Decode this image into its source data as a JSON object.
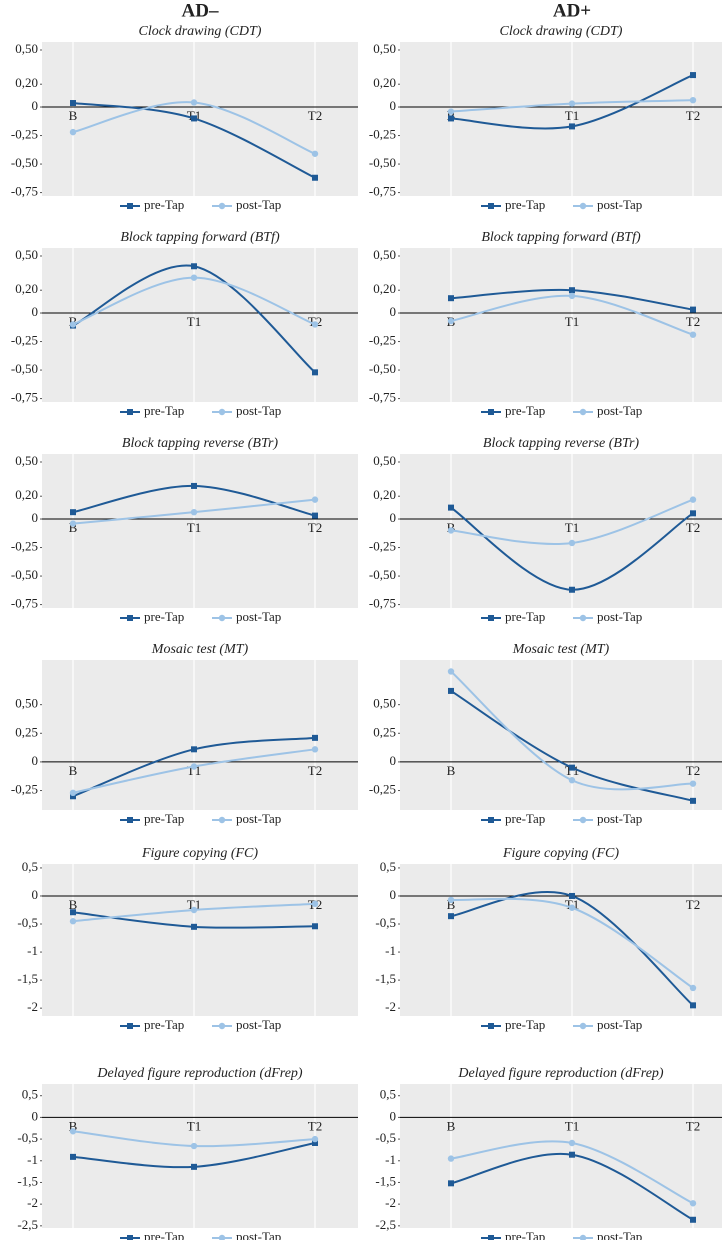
{
  "headers": [
    "AD–",
    "AD+"
  ],
  "chart_data": [
    {
      "type": "line",
      "title": "Clock drawing (CDT)",
      "categories": [
        "B",
        "T1",
        "T2"
      ],
      "series": [
        {
          "name": "pre-Tap",
          "color": "#1f5a96",
          "values": [
            0.035,
            -0.1,
            -0.62
          ]
        },
        {
          "name": "post-Tap",
          "color": "#9dc3e6",
          "values": [
            -0.22,
            0.04,
            -0.41
          ]
        }
      ],
      "ylim": [
        -0.78,
        0.57
      ],
      "yticks": [
        {
          "value": 0.5,
          "label": "0,50"
        },
        {
          "value": 0.2,
          "label": "0,20"
        },
        0,
        {
          "value": -0.25,
          "label": "-0,25"
        },
        {
          "value": -0.5,
          "label": "-0,50"
        },
        {
          "value": -0.75,
          "label": "-0,75"
        }
      ]
    },
    {
      "type": "line",
      "title": "Clock drawing (CDT)",
      "categories": [
        "B",
        "T1",
        "T2"
      ],
      "series": [
        {
          "name": "pre-Tap",
          "color": "#1f5a96",
          "values": [
            -0.1,
            -0.17,
            0.28
          ]
        },
        {
          "name": "post-Tap",
          "color": "#9dc3e6",
          "values": [
            -0.04,
            0.03,
            0.06
          ]
        }
      ],
      "ylim": [
        -0.78,
        0.57
      ],
      "yticks": [
        {
          "value": 0.5,
          "label": "0,50"
        },
        {
          "value": 0.2,
          "label": "0,20"
        },
        0,
        {
          "value": -0.25,
          "label": "-0,25"
        },
        {
          "value": -0.5,
          "label": "-0,50"
        },
        {
          "value": -0.75,
          "label": "-0,75"
        }
      ]
    },
    {
      "type": "line",
      "title": "Block tapping forward (BTf)",
      "categories": [
        "B",
        "T1",
        "T2"
      ],
      "series": [
        {
          "name": "pre-Tap",
          "color": "#1f5a96",
          "values": [
            -0.11,
            0.41,
            -0.52
          ]
        },
        {
          "name": "post-Tap",
          "color": "#9dc3e6",
          "values": [
            -0.1,
            0.31,
            -0.1
          ]
        }
      ],
      "ylim": [
        -0.78,
        0.57
      ],
      "yticks": [
        {
          "value": 0.5,
          "label": "0,50"
        },
        {
          "value": 0.2,
          "label": "0,20"
        },
        0,
        {
          "value": -0.25,
          "label": "-0,25"
        },
        {
          "value": -0.5,
          "label": "-0,50"
        },
        {
          "value": -0.75,
          "label": "-0,75"
        }
      ]
    },
    {
      "type": "line",
      "title": "Block tapping forward (BTf)",
      "categories": [
        "B",
        "T1",
        "T2"
      ],
      "series": [
        {
          "name": "pre-Tap",
          "color": "#1f5a96",
          "values": [
            0.13,
            0.2,
            0.03
          ]
        },
        {
          "name": "post-Tap",
          "color": "#9dc3e6",
          "values": [
            -0.07,
            0.15,
            -0.19
          ]
        }
      ],
      "ylim": [
        -0.78,
        0.57
      ],
      "yticks": [
        {
          "value": 0.5,
          "label": "0,50"
        },
        {
          "value": 0.2,
          "label": "0,20"
        },
        0,
        {
          "value": -0.25,
          "label": "-0,25"
        },
        {
          "value": -0.5,
          "label": "-0,50"
        },
        {
          "value": -0.75,
          "label": "-0,75"
        }
      ]
    },
    {
      "type": "line",
      "title": "Block tapping reverse (BTr)",
      "categories": [
        "B",
        "T1",
        "T2"
      ],
      "series": [
        {
          "name": "pre-Tap",
          "color": "#1f5a96",
          "values": [
            0.06,
            0.29,
            0.03
          ]
        },
        {
          "name": "post-Tap",
          "color": "#9dc3e6",
          "values": [
            -0.04,
            0.06,
            0.17
          ]
        }
      ],
      "ylim": [
        -0.78,
        0.57
      ],
      "yticks": [
        {
          "value": 0.5,
          "label": "0,50"
        },
        {
          "value": 0.2,
          "label": "0,20"
        },
        0,
        {
          "value": -0.25,
          "label": "-0,25"
        },
        {
          "value": -0.5,
          "label": "-0,50"
        },
        {
          "value": -0.75,
          "label": "-0,75"
        }
      ]
    },
    {
      "type": "line",
      "title": "Block tapping reverse (BTr)",
      "categories": [
        "B",
        "T1",
        "T2"
      ],
      "series": [
        {
          "name": "pre-Tap",
          "color": "#1f5a96",
          "values": [
            0.1,
            -0.62,
            0.05
          ]
        },
        {
          "name": "post-Tap",
          "color": "#9dc3e6",
          "values": [
            -0.1,
            -0.21,
            0.17
          ]
        }
      ],
      "ylim": [
        -0.78,
        0.57
      ],
      "yticks": [
        {
          "value": 0.5,
          "label": "0,50"
        },
        {
          "value": 0.2,
          "label": "0,20"
        },
        0,
        {
          "value": -0.25,
          "label": "-0,25"
        },
        {
          "value": -0.5,
          "label": "-0,50"
        },
        {
          "value": -0.75,
          "label": "-0,75"
        }
      ]
    },
    {
      "type": "line",
      "title": "Mosaic test (MT)",
      "categories": [
        "B",
        "T1",
        "T2"
      ],
      "series": [
        {
          "name": "pre-Tap",
          "color": "#1f5a96",
          "values": [
            -0.3,
            0.11,
            0.21
          ]
        },
        {
          "name": "post-Tap",
          "color": "#9dc3e6",
          "values": [
            -0.27,
            -0.04,
            0.11
          ]
        }
      ],
      "ylim": [
        -0.42,
        0.89
      ],
      "yticks": [
        {
          "value": 0.5,
          "label": "0,50"
        },
        {
          "value": 0.25,
          "label": "0,25"
        },
        0,
        {
          "value": -0.25,
          "label": "-0,25"
        }
      ]
    },
    {
      "type": "line",
      "title": "Mosaic test (MT)",
      "categories": [
        "B",
        "T1",
        "T2"
      ],
      "series": [
        {
          "name": "pre-Tap",
          "color": "#1f5a96",
          "values": [
            0.62,
            -0.05,
            -0.34
          ]
        },
        {
          "name": "post-Tap",
          "color": "#9dc3e6",
          "values": [
            0.79,
            -0.16,
            -0.19
          ]
        }
      ],
      "ylim": [
        -0.42,
        0.89
      ],
      "yticks": [
        {
          "value": 0.5,
          "label": "0,50"
        },
        {
          "value": 0.25,
          "label": "0,25"
        },
        0,
        {
          "value": -0.25,
          "label": "-0,25"
        }
      ]
    },
    {
      "type": "line",
      "title": "Figure copying (FC)",
      "categories": [
        "B",
        "T1",
        "T2"
      ],
      "series": [
        {
          "name": "pre-Tap",
          "color": "#1f5a96",
          "values": [
            -0.29,
            -0.55,
            -0.54
          ]
        },
        {
          "name": "post-Tap",
          "color": "#9dc3e6",
          "values": [
            -0.45,
            -0.25,
            -0.14
          ]
        }
      ],
      "ylim": [
        -2.14,
        0.57
      ],
      "yticks": [
        {
          "value": 0.5,
          "label": "0,5"
        },
        0,
        {
          "value": -0.5,
          "label": "-0,5"
        },
        -1,
        {
          "value": -1.5,
          "label": "-1,5"
        },
        -2
      ]
    },
    {
      "type": "line",
      "title": "Figure copying (FC)",
      "categories": [
        "B",
        "T1",
        "T2"
      ],
      "series": [
        {
          "name": "pre-Tap",
          "color": "#1f5a96",
          "values": [
            -0.36,
            0,
            -1.95
          ]
        },
        {
          "name": "post-Tap",
          "color": "#9dc3e6",
          "values": [
            -0.07,
            -0.21,
            -1.64
          ]
        }
      ],
      "ylim": [
        -2.14,
        0.57
      ],
      "yticks": [
        {
          "value": 0.5,
          "label": "0,5"
        },
        0,
        {
          "value": -0.5,
          "label": "-0,5"
        },
        -1,
        {
          "value": -1.5,
          "label": "-1,5"
        },
        -2
      ]
    },
    {
      "type": "line",
      "title": "Delayed figure reproduction (dFrep)",
      "categories": [
        "B",
        "T1",
        "T2"
      ],
      "series": [
        {
          "name": "pre-Tap",
          "color": "#1f5a96",
          "values": [
            -0.91,
            -1.14,
            -0.59
          ]
        },
        {
          "name": "post-Tap",
          "color": "#9dc3e6",
          "values": [
            -0.32,
            -0.66,
            -0.5
          ]
        }
      ],
      "ylim": [
        -2.55,
        0.77
      ],
      "yticks": [
        {
          "value": 0.5,
          "label": "0,5"
        },
        0,
        {
          "value": -0.5,
          "label": "-0,5"
        },
        -1,
        {
          "value": -1.5,
          "label": "-1,5"
        },
        -2,
        {
          "value": -2.5,
          "label": "-2,5"
        }
      ]
    },
    {
      "type": "line",
      "title": "Delayed figure reproduction (dFrep)",
      "categories": [
        "B",
        "T1",
        "T2"
      ],
      "series": [
        {
          "name": "pre-Tap",
          "color": "#1f5a96",
          "values": [
            -1.52,
            -0.86,
            -2.36
          ]
        },
        {
          "name": "post-Tap",
          "color": "#9dc3e6",
          "values": [
            -0.95,
            -0.59,
            -1.98
          ]
        }
      ],
      "ylim": [
        -2.55,
        0.77
      ],
      "yticks": [
        {
          "value": 0.5,
          "label": "0,5"
        },
        0,
        {
          "value": -0.5,
          "label": "-0,5"
        },
        -1,
        {
          "value": -1.5,
          "label": "-1,5"
        },
        -2,
        {
          "value": -2.5,
          "label": "-2,5"
        }
      ]
    }
  ]
}
